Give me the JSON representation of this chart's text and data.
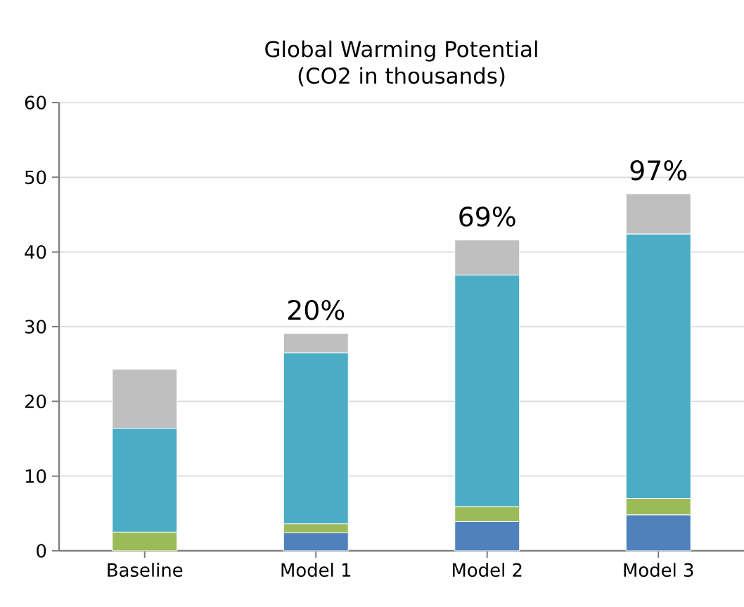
{
  "chart_data": {
    "type": "bar",
    "stacked": true,
    "title": "Global Warming Potential",
    "subtitle": "(CO2 in thousands)",
    "categories": [
      "Baseline",
      "Model 1",
      "Model 2",
      "Model 3"
    ],
    "series": [
      {
        "color": "#4f81bd",
        "values": [
          0,
          2.4,
          3.9,
          4.8
        ]
      },
      {
        "color": "#9bbb59",
        "values": [
          2.5,
          1.2,
          2.0,
          2.2
        ]
      },
      {
        "color": "#4bacc6",
        "values": [
          13.9,
          22.9,
          31.0,
          35.4
        ]
      },
      {
        "color": "#bfbfbf",
        "values": [
          7.9,
          2.6,
          4.7,
          5.4
        ]
      }
    ],
    "ylim": [
      0,
      60
    ],
    "yticks": [
      0,
      10,
      20,
      30,
      40,
      50,
      60
    ],
    "grid": "y",
    "annotations": [
      {
        "text": "20%",
        "x": "Model 1",
        "y": 29.1
      },
      {
        "text": "69%",
        "x": "Model 2",
        "y": 41.6
      },
      {
        "text": "97%",
        "x": "Model 3",
        "y": 47.8
      }
    ]
  }
}
